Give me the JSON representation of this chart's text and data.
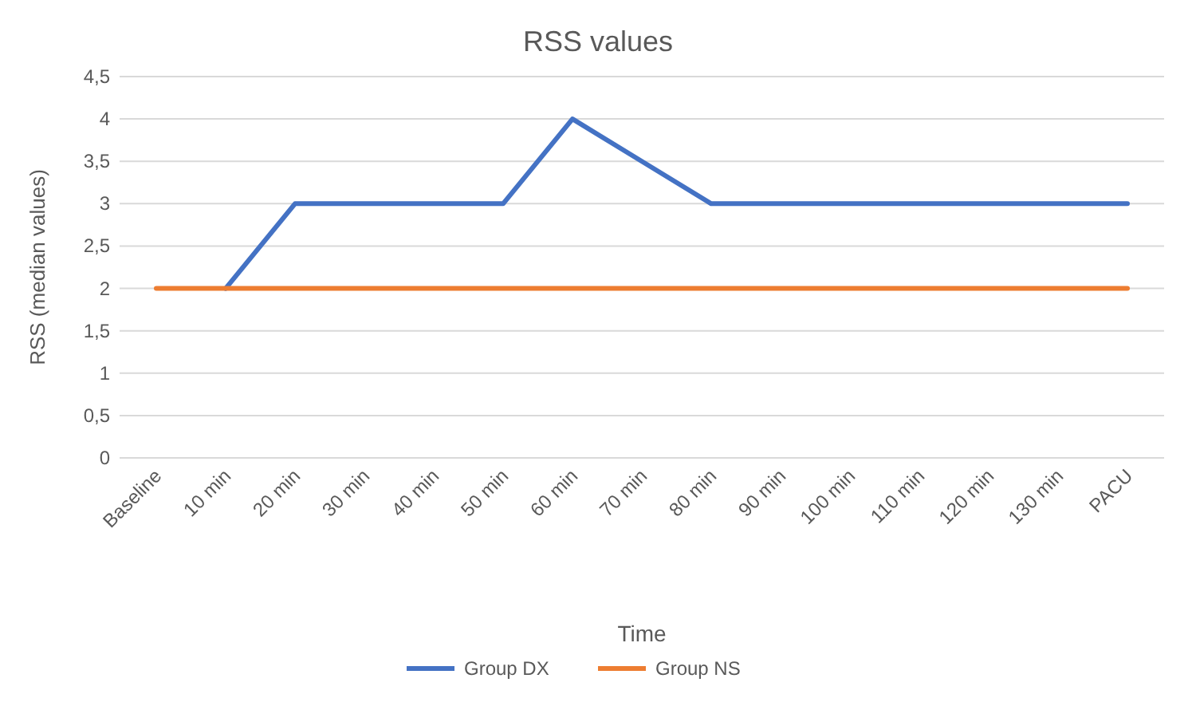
{
  "chart_data": {
    "type": "line",
    "title": "RSS values",
    "xlabel": "Time",
    "ylabel": "RSS (median values)",
    "categories": [
      "Baseline",
      "10 min",
      "20 min",
      "30 min",
      "40 min",
      "50 min",
      "60 min",
      "70 min",
      "80 min",
      "90 min",
      "100 min",
      "110 min",
      "120 min",
      "130 min",
      "PACU"
    ],
    "series": [
      {
        "name": "Group DX",
        "color": "#4472c4",
        "values": [
          null,
          2,
          3,
          3,
          3,
          3,
          4,
          3.5,
          3,
          3,
          3,
          3,
          3,
          3,
          3
        ]
      },
      {
        "name": "Group NS",
        "color": "#ed7d31",
        "values": [
          2,
          2,
          2,
          2,
          2,
          2,
          2,
          2,
          2,
          2,
          2,
          2,
          2,
          2,
          2
        ]
      }
    ],
    "ylim": [
      0,
      4.5
    ],
    "yticks": [
      0,
      {
        "value": 0.5,
        "label": "0,5"
      },
      1,
      {
        "value": 1.5,
        "label": "1,5"
      },
      2,
      {
        "value": 2.5,
        "label": "2,5"
      },
      3,
      {
        "value": 3.5,
        "label": "3,5"
      },
      4,
      {
        "value": 4.5,
        "label": "4,5"
      }
    ],
    "grid": "y",
    "legend": "bottom",
    "marker": "none",
    "line_style": "solid"
  }
}
